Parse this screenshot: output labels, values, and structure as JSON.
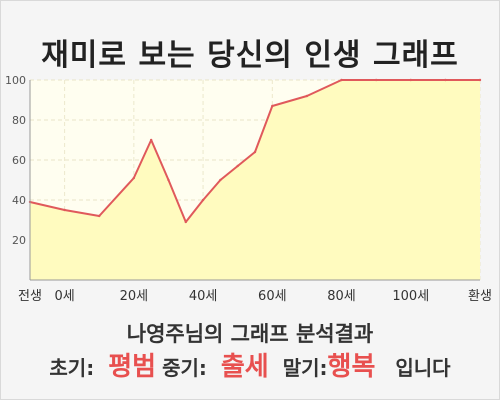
{
  "title": "재미로 보는 당신의 인생 그래프",
  "subtitle": "나영주님의 그래프 분석결과",
  "summary": {
    "early_label": "초기:",
    "early_value": "평범",
    "mid_label": "중기:",
    "mid_value": "출세",
    "late_label": "말기:",
    "late_value": "행복",
    "ending": "입니다"
  },
  "colors": {
    "accent": "#e8504f",
    "line": "#e0595b",
    "fill": "#fffbbf",
    "plot_bg": "#fffef0"
  },
  "chart_data": {
    "type": "area",
    "title": "재미로 보는 당신의 인생 그래프",
    "xlabel": "",
    "ylabel": "",
    "xlim": [
      -10,
      120
    ],
    "ylim": [
      0,
      100
    ],
    "grid": true,
    "x": [
      -10,
      0,
      10,
      20,
      25,
      30,
      35,
      40,
      45,
      50,
      55,
      60,
      70,
      80,
      90,
      100,
      110,
      120
    ],
    "values": [
      39,
      35,
      32,
      51,
      70,
      50,
      29,
      40,
      50,
      57,
      64,
      87,
      92,
      100,
      100,
      100,
      100,
      100
    ],
    "x_tick_labels": [
      {
        "x": -10,
        "label": "전생"
      },
      {
        "x": 0,
        "label": "0세"
      },
      {
        "x": 20,
        "label": "20세"
      },
      {
        "x": 40,
        "label": "40세"
      },
      {
        "x": 60,
        "label": "60세"
      },
      {
        "x": 80,
        "label": "80세"
      },
      {
        "x": 100,
        "label": "100세"
      },
      {
        "x": 120,
        "label": "환생"
      }
    ],
    "y_ticks": [
      20,
      40,
      60,
      80,
      100
    ]
  }
}
